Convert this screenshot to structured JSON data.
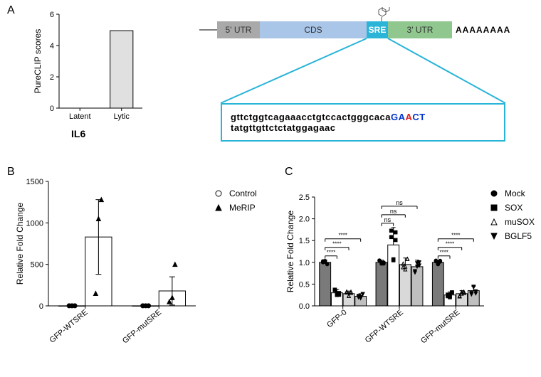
{
  "panelA": {
    "label": "A",
    "chart": {
      "type": "bar",
      "title": "IL6",
      "ylabel": "PureCLIP scores",
      "categories": [
        "Latent",
        "Lytic"
      ],
      "values": [
        0,
        4.95
      ],
      "bar_color": "#e0e0e0",
      "bar_border": "#000000",
      "ylim": [
        0,
        6
      ],
      "ytick_step": 2,
      "bar_width": 0.55,
      "title_fontsize": 14,
      "label_fontsize": 12,
      "tick_fontsize": 11,
      "background_color": "#ffffff"
    },
    "gene": {
      "segments": [
        {
          "label": "5' UTR",
          "color": "#a9a9a9",
          "width": 60
        },
        {
          "label": "CDS",
          "color": "#a9c5e8",
          "width": 150
        },
        {
          "label": "SRE",
          "color": "#29b4d8",
          "width": 30
        },
        {
          "label": "3' UTR",
          "color": "#8fc78f",
          "width": 90
        }
      ],
      "polyA": "AAAAAAAA",
      "leader_color": "#000000",
      "zoom_color": "#29b4d8",
      "sequence_parts": [
        {
          "text": "gttctggtcagaaacctgtccactgggcaca",
          "class": ""
        },
        {
          "text": "GA",
          "class": "seq-blue"
        },
        {
          "text": "A",
          "class": "seq-red"
        },
        {
          "text": "CT",
          "class": "seq-blue"
        },
        {
          "text": "tatgttgttctctatggagaac",
          "class": ""
        }
      ]
    }
  },
  "panelB": {
    "label": "B",
    "chart": {
      "type": "bar_scatter",
      "ylabel": "Relative Fold Change",
      "groups": [
        "GFP-WTSRE",
        "GFP-mutSRE"
      ],
      "series": [
        {
          "name": "Control",
          "marker": "circle",
          "values": [
            1,
            1
          ],
          "points": [
            [
              1,
              1,
              1
            ],
            [
              1,
              1,
              1
            ]
          ],
          "bar_color": "#ffffff"
        },
        {
          "name": "MeRIP",
          "marker": "triangle",
          "values": [
            830,
            180
          ],
          "points": [
            [
              150,
              1050,
              1280
            ],
            [
              50,
              100,
              500
            ]
          ],
          "bar_color": "#ffffff"
        }
      ],
      "error_upper": [
        [
          0,
          0
        ],
        [
          450,
          170
        ]
      ],
      "ylim": [
        0,
        1500
      ],
      "ytick_step": 500,
      "bar_width": 0.36,
      "bar_color": "#ffffff",
      "bar_border": "#000000",
      "marker_fill": "#000000",
      "label_fontsize": 12,
      "tick_fontsize": 11
    },
    "legend": [
      {
        "marker": "circle",
        "label": "Control"
      },
      {
        "marker": "triangle",
        "label": "MeRIP"
      }
    ]
  },
  "panelC": {
    "label": "C",
    "chart": {
      "type": "grouped_bar",
      "ylabel": "Relative Fold Change",
      "groups": [
        "GFP-0",
        "GFP-WTSRE",
        "GFP-mutSRE"
      ],
      "series": [
        {
          "name": "Mock",
          "marker": "circle",
          "values": [
            1.0,
            1.0,
            1.0
          ],
          "bar_color": "#7a7a7a"
        },
        {
          "name": "SOX",
          "marker": "square",
          "values": [
            0.3,
            1.4,
            0.25
          ],
          "bar_color": "#ffffff"
        },
        {
          "name": "muSOX",
          "marker": "triangle_open",
          "values": [
            0.28,
            0.95,
            0.28
          ],
          "bar_color": "#d9d9d9"
        },
        {
          "name": "BGLF5",
          "marker": "triangle_down",
          "values": [
            0.22,
            0.9,
            0.35
          ],
          "bar_color": "#bfbfbf"
        }
      ],
      "error_upper": [
        [
          0.05,
          0.05,
          0.05
        ],
        [
          0.08,
          0.4,
          0.07
        ],
        [
          0.06,
          0.15,
          0.07
        ],
        [
          0.06,
          0.15,
          0.1
        ]
      ],
      "sig_markers": [
        {
          "group": 0,
          "pairs": [
            [
              0,
              1,
              "****"
            ],
            [
              0,
              2,
              "****"
            ],
            [
              0,
              3,
              "****"
            ]
          ]
        },
        {
          "group": 1,
          "pairs": [
            [
              0,
              1,
              "ns"
            ],
            [
              0,
              2,
              "ns"
            ],
            [
              0,
              3,
              "ns"
            ]
          ]
        },
        {
          "group": 2,
          "pairs": [
            [
              0,
              1,
              "****"
            ],
            [
              0,
              2,
              "****"
            ],
            [
              0,
              3,
              "****"
            ]
          ]
        }
      ],
      "ylim": [
        0.0,
        2.5
      ],
      "ytick_step": 0.5,
      "bar_width": 0.2,
      "bar_border": "#000000",
      "sig_color": "#000000",
      "label_fontsize": 12,
      "tick_fontsize": 11
    },
    "legend": [
      {
        "marker": "circle",
        "label": "Mock"
      },
      {
        "marker": "square",
        "label": "SOX"
      },
      {
        "marker": "triangle_open",
        "label": "muSOX"
      },
      {
        "marker": "triangle_down",
        "label": "BGLF5"
      }
    ]
  }
}
